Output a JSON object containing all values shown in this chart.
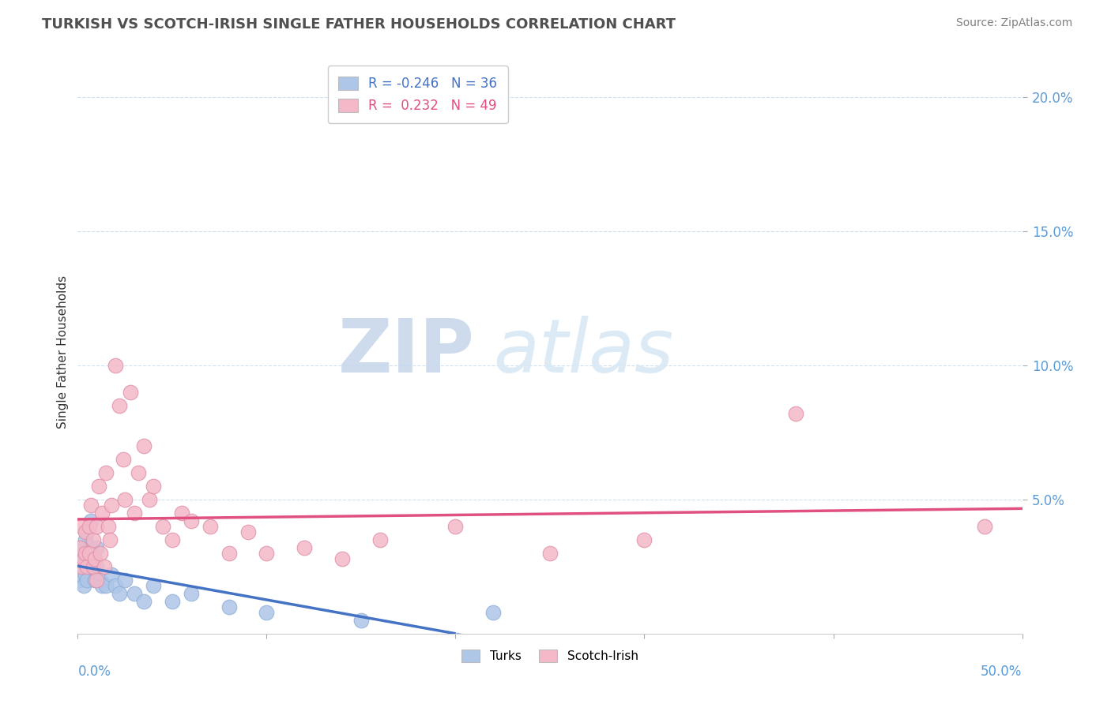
{
  "title": "TURKISH VS SCOTCH-IRISH SINGLE FATHER HOUSEHOLDS CORRELATION CHART",
  "source": "Source: ZipAtlas.com",
  "ylabel": "Single Father Households",
  "legend_turks_label": "Turks",
  "legend_scotch_label": "Scotch-Irish",
  "turks_R": -0.246,
  "turks_N": 36,
  "scotch_R": 0.232,
  "scotch_N": 49,
  "turks_color": "#aec6e8",
  "scotch_color": "#f4b8c8",
  "turks_line_color": "#4472c4",
  "scotch_line_color": "#e05080",
  "xlim": [
    0.0,
    0.5
  ],
  "ylim": [
    0.0,
    0.21
  ],
  "yticks": [
    0.05,
    0.1,
    0.15,
    0.2
  ],
  "ytick_labels": [
    "5.0%",
    "10.0%",
    "15.0%",
    "20.0%"
  ],
  "background_color": "#ffffff",
  "turks_x": [
    0.001,
    0.001,
    0.002,
    0.002,
    0.002,
    0.003,
    0.003,
    0.003,
    0.004,
    0.004,
    0.005,
    0.005,
    0.005,
    0.006,
    0.006,
    0.007,
    0.008,
    0.009,
    0.01,
    0.01,
    0.012,
    0.013,
    0.015,
    0.018,
    0.02,
    0.022,
    0.025,
    0.03,
    0.035,
    0.04,
    0.05,
    0.06,
    0.08,
    0.1,
    0.15,
    0.22
  ],
  "turks_y": [
    0.02,
    0.025,
    0.022,
    0.028,
    0.032,
    0.018,
    0.025,
    0.03,
    0.022,
    0.035,
    0.02,
    0.03,
    0.038,
    0.025,
    0.032,
    0.042,
    0.028,
    0.02,
    0.032,
    0.025,
    0.02,
    0.018,
    0.018,
    0.022,
    0.018,
    0.015,
    0.02,
    0.015,
    0.012,
    0.018,
    0.012,
    0.015,
    0.01,
    0.008,
    0.005,
    0.008
  ],
  "scotch_x": [
    0.001,
    0.002,
    0.002,
    0.003,
    0.004,
    0.004,
    0.005,
    0.006,
    0.006,
    0.007,
    0.008,
    0.008,
    0.009,
    0.01,
    0.01,
    0.011,
    0.012,
    0.013,
    0.014,
    0.015,
    0.016,
    0.017,
    0.018,
    0.02,
    0.022,
    0.024,
    0.025,
    0.028,
    0.03,
    0.032,
    0.035,
    0.038,
    0.04,
    0.045,
    0.05,
    0.055,
    0.06,
    0.07,
    0.08,
    0.09,
    0.1,
    0.12,
    0.14,
    0.16,
    0.2,
    0.25,
    0.3,
    0.38,
    0.48
  ],
  "scotch_y": [
    0.032,
    0.025,
    0.04,
    0.028,
    0.03,
    0.038,
    0.025,
    0.04,
    0.03,
    0.048,
    0.035,
    0.025,
    0.028,
    0.04,
    0.02,
    0.055,
    0.03,
    0.045,
    0.025,
    0.06,
    0.04,
    0.035,
    0.048,
    0.1,
    0.085,
    0.065,
    0.05,
    0.09,
    0.045,
    0.06,
    0.07,
    0.05,
    0.055,
    0.04,
    0.035,
    0.045,
    0.042,
    0.04,
    0.03,
    0.038,
    0.03,
    0.032,
    0.028,
    0.035,
    0.04,
    0.03,
    0.035,
    0.082,
    0.04
  ]
}
